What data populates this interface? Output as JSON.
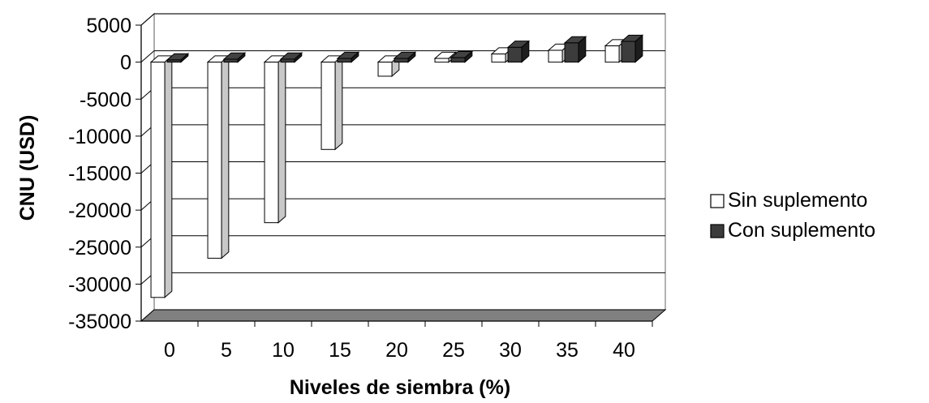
{
  "chart_data": {
    "type": "bar",
    "categories": [
      "0",
      "5",
      "10",
      "15",
      "20",
      "25",
      "30",
      "35",
      "40"
    ],
    "series": [
      {
        "name": "Sin suplemento",
        "color": "#ffffff",
        "values": [
          -31800,
          -26500,
          -21700,
          -11800,
          -1900,
          500,
          1100,
          1600,
          2200
        ]
      },
      {
        "name": "Con suplemento",
        "color": "#3c3c3c",
        "values": [
          300,
          400,
          400,
          500,
          500,
          600,
          2000,
          2600,
          2800
        ]
      }
    ],
    "xlabel": "Niveles de siembra (%)",
    "ylabel": "CNU (USD)",
    "ylim": [
      -35000,
      5000
    ],
    "yticks": [
      5000,
      0,
      -5000,
      -10000,
      -15000,
      -20000,
      -25000,
      -30000,
      -35000
    ],
    "grid": true,
    "legend_position": "right",
    "depth_3d": true
  }
}
